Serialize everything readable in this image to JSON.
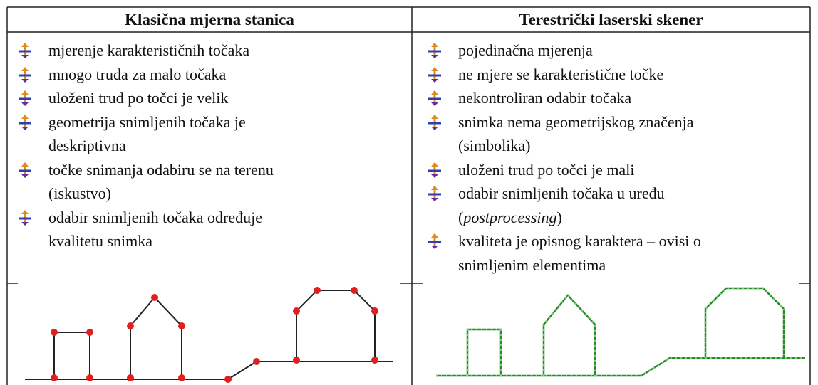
{
  "columns": [
    {
      "title": "Klasična mjerna stanica",
      "items": [
        [
          "mjerenje karakterističnih točaka"
        ],
        [
          "mnogo truda za malo točaka"
        ],
        [
          "uloženi trud po točci je velik"
        ],
        [
          "geometrija snimljenih točaka je",
          "deskriptivna"
        ],
        [
          "točke snimanja odabiru se na terenu",
          "(iskustvo)"
        ],
        [
          "odabir snimljenih točaka određuje",
          "kvalitetu  snimka"
        ]
      ]
    },
    {
      "title": "Terestrički laserski skener",
      "items": [
        [
          "pojedinačna mjerenja"
        ],
        [
          "ne mjere se karakteristične točke"
        ],
        [
          "nekontroliran odabir točaka"
        ],
        [
          "snimka nema geometrijskog značenja",
          "(simbolika)"
        ],
        [
          "uloženi trud po točci je mali"
        ],
        [
          "odabir snimljenih točaka u uređu",
          [
            {
              "text": "("
            },
            {
              "text": "postprocessing",
              "italic": true
            },
            {
              "text": ")"
            }
          ]
        ],
        [
          "kvaliteta je opisnog karaktera – ovisi o",
          "snimljenim elementima"
        ]
      ]
    }
  ]
}
